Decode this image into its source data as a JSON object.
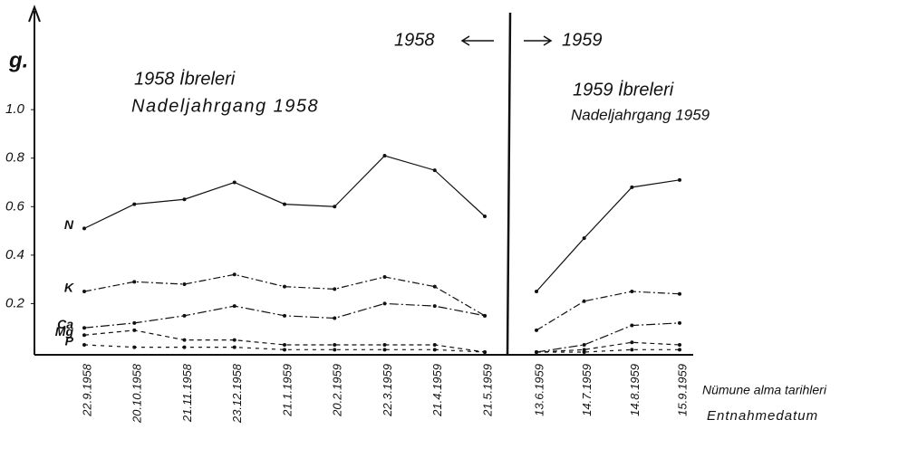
{
  "chart_data": [
    {
      "type": "line",
      "title": "1958 İbreleri",
      "subtitle": "Nadeljahrgang 1958",
      "y_label": "g.",
      "era_label": "1958",
      "categories": [
        "22.9.1958",
        "20.10.1958",
        "21.11.1958",
        "23.12.1958",
        "21.1.1959",
        "20.2.1959",
        "22.3.1959",
        "21.4.1959",
        "21.5.1959"
      ],
      "ylim": [
        0,
        1.4
      ],
      "yticks": [
        0.2,
        0.4,
        0.6,
        0.8,
        {
          "value": 1.0,
          "label": "1.0"
        }
      ],
      "series": [
        {
          "name": "N",
          "color": "#111111",
          "dash": "none",
          "values": [
            0.51,
            0.61,
            0.63,
            0.7,
            0.61,
            0.6,
            0.81,
            0.75,
            0.56
          ]
        },
        {
          "name": "K",
          "color": "#111111",
          "dash": "8 3 2 3",
          "values": [
            0.25,
            0.29,
            0.28,
            0.32,
            0.27,
            0.26,
            0.31,
            0.27,
            0.15
          ]
        },
        {
          "name": "Ca",
          "color": "#111111",
          "dash": "10 3 2 3",
          "values": [
            0.1,
            0.12,
            0.15,
            0.19,
            0.15,
            0.14,
            0.2,
            0.19,
            0.15
          ]
        },
        {
          "name": "Mg",
          "color": "#111111",
          "dash": "5 4",
          "values": [
            0.07,
            0.09,
            0.05,
            0.05,
            0.03,
            0.03,
            0.03,
            0.03,
            0.0
          ]
        },
        {
          "name": "P",
          "color": "#111111",
          "dash": "4 5",
          "values": [
            0.03,
            0.02,
            0.02,
            0.02,
            0.01,
            0.01,
            0.01,
            0.01,
            0.0
          ]
        }
      ]
    },
    {
      "type": "line",
      "title": "1959 İbreleri",
      "subtitle": "Nadeljahrgang 1959",
      "era_label": "1959",
      "x_label": "Nümune alma tarihleri",
      "x_label2": "Entnahmedatum",
      "categories": [
        "13.6.1959",
        "14.7.1959",
        "14.8.1959",
        "15.9.1959"
      ],
      "ylim": [
        0,
        1.4
      ],
      "series": [
        {
          "color": "#111111",
          "dash": "none",
          "values": [
            0.25,
            0.47,
            0.68,
            0.71
          ]
        },
        {
          "color": "#111111",
          "dash": "8 3 2 3",
          "values": [
            0.09,
            0.21,
            0.25,
            0.24
          ]
        },
        {
          "color": "#111111",
          "dash": "10 3 2 3",
          "values": [
            0.0,
            0.03,
            0.11,
            0.12
          ]
        },
        {
          "color": "#111111",
          "dash": "5 4",
          "values": [
            0.0,
            0.01,
            0.04,
            0.03
          ]
        },
        {
          "color": "#111111",
          "dash": "4 5",
          "values": [
            0.0,
            0.0,
            0.01,
            0.01
          ]
        }
      ]
    }
  ]
}
